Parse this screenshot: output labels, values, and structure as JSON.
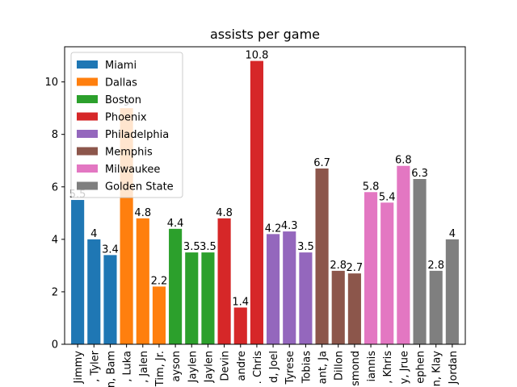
{
  "chart_data": {
    "type": "bar",
    "title": "assists per game",
    "xlabel": "",
    "ylabel": "",
    "ylim": [
      0,
      11.34
    ],
    "yticks": [
      0,
      2,
      4,
      6,
      8,
      10
    ],
    "grid": false,
    "legend_placement": "top-left",
    "categories": [
      "Butler, Jimmy",
      "Herro, Tyler",
      "Adebayo, Bam",
      "Doncic, Luka",
      "Brunson, Jalen",
      "Hardaway, Tim, Jr.",
      "Tatum, Jayson",
      "Brown, Jaylen",
      "Brown, Jaylen",
      "Booker, Devin",
      "Ayton, Deandre",
      "Paul, Chris",
      "Embiid, Joel",
      "Maxey, Tyrese",
      "Harris, Tobias",
      "Morant, Ja",
      "Brooks, Dillon",
      "Bane, Desmond",
      "Antetokounmpo, Giannis",
      "Middleton, Khris",
      "Holiday, Jrue",
      "Curry, Stephen",
      "Thompson, Klay",
      "Poole, Jordan"
    ],
    "visible_tick_labels": [
      "Jimmy",
      ", Tyler",
      "n, Bam",
      ", Luka",
      ", Jalen",
      "Tim, Jr.",
      "ayson",
      "Jaylen",
      "Jaylen",
      "Devin",
      "andre",
      ". Chris",
      "d, Joel",
      "Tyrese",
      "Tobias",
      "ant, Ja",
      "Dillon",
      "smond",
      "iannis",
      ", Khris",
      "y, Jrue",
      "ephen",
      "n, Klay",
      "Jordan"
    ],
    "values": [
      5.5,
      4,
      3.4,
      9,
      4.8,
      2.2,
      4.4,
      3.5,
      3.5,
      4.8,
      1.4,
      10.8,
      4.2,
      4.3,
      3.5,
      6.7,
      2.8,
      2.7,
      5.8,
      5.4,
      6.8,
      6.3,
      2.8,
      4
    ],
    "value_labels": [
      "5.5",
      "4",
      "3.4",
      "9",
      "4.8",
      "2.2",
      "4.4",
      "3.5",
      "3.5",
      "4.8",
      "1.4",
      "10.8",
      "4.2",
      "4.3",
      "3.5",
      "6.7",
      "2.8",
      "2.7",
      "5.8",
      "5.4",
      "6.8",
      "6.3",
      "2.8",
      "4"
    ],
    "team_of_bar": [
      0,
      0,
      0,
      1,
      1,
      1,
      2,
      2,
      2,
      3,
      3,
      3,
      4,
      4,
      4,
      5,
      5,
      5,
      6,
      6,
      6,
      7,
      7,
      7
    ],
    "series": [
      {
        "name": "Miami",
        "color": "#1f77b4"
      },
      {
        "name": "Dallas",
        "color": "#ff7f0e"
      },
      {
        "name": "Boston",
        "color": "#2ca02c"
      },
      {
        "name": "Phoenix",
        "color": "#d62728"
      },
      {
        "name": "Philadelphia",
        "color": "#9467bd"
      },
      {
        "name": "Memphis",
        "color": "#8c564b"
      },
      {
        "name": "Milwaukee",
        "color": "#e377c2"
      },
      {
        "name": "Golden State",
        "color": "#7f7f7f"
      }
    ]
  }
}
